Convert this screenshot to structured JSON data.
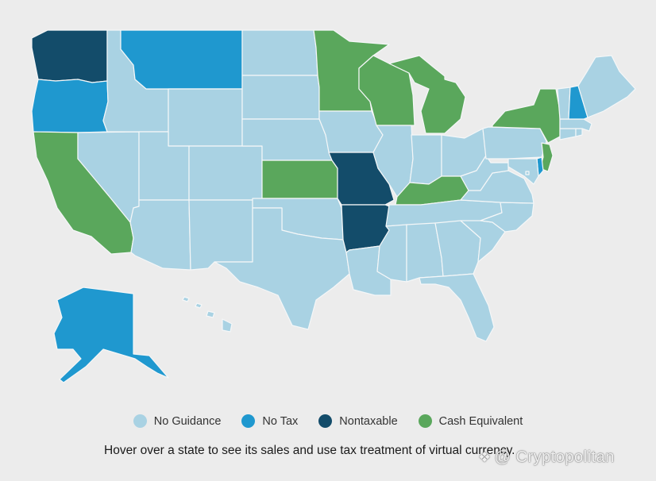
{
  "colors": {
    "no_guidance": "#a9d2e3",
    "no_tax": "#1f98cf",
    "nontaxable": "#134c6a",
    "cash_equivalent": "#5aa75c"
  },
  "legend": [
    {
      "key": "no_guidance",
      "label": "No Guidance"
    },
    {
      "key": "no_tax",
      "label": "No Tax"
    },
    {
      "key": "nontaxable",
      "label": "Nontaxable"
    },
    {
      "key": "cash_equivalent",
      "label": "Cash Equivalent"
    }
  ],
  "caption": "Hover over a state to see its sales and use tax treatment of virtual currency.",
  "watermark": {
    "text": "@ Cryptopolitan",
    "icon": "cryptopolitan-logo-icon"
  },
  "states": {
    "WA": "nontaxable",
    "OR": "no_tax",
    "CA": "cash_equivalent",
    "NV": "no_guidance",
    "ID": "no_guidance",
    "MT": "no_tax",
    "WY": "no_guidance",
    "UT": "no_guidance",
    "AZ": "no_guidance",
    "CO": "no_guidance",
    "NM": "no_guidance",
    "ND": "no_guidance",
    "SD": "no_guidance",
    "NE": "no_guidance",
    "KS": "cash_equivalent",
    "OK": "no_guidance",
    "TX": "no_guidance",
    "MN": "cash_equivalent",
    "IA": "no_guidance",
    "MO": "nontaxable",
    "AR": "nontaxable",
    "LA": "no_guidance",
    "WI": "cash_equivalent",
    "IL": "no_guidance",
    "MI": "cash_equivalent",
    "IN": "no_guidance",
    "OH": "no_guidance",
    "KY": "cash_equivalent",
    "TN": "no_guidance",
    "MS": "no_guidance",
    "AL": "no_guidance",
    "GA": "no_guidance",
    "FL": "no_guidance",
    "SC": "no_guidance",
    "NC": "no_guidance",
    "VA": "no_guidance",
    "WV": "no_guidance",
    "PA": "no_guidance",
    "NY": "cash_equivalent",
    "NJ": "cash_equivalent",
    "DE": "no_tax",
    "MD": "no_guidance",
    "CT": "no_guidance",
    "RI": "no_guidance",
    "MA": "no_guidance",
    "VT": "no_guidance",
    "NH": "no_tax",
    "ME": "no_guidance",
    "AK": "no_tax",
    "HI": "no_guidance",
    "DC": "no_guidance"
  }
}
